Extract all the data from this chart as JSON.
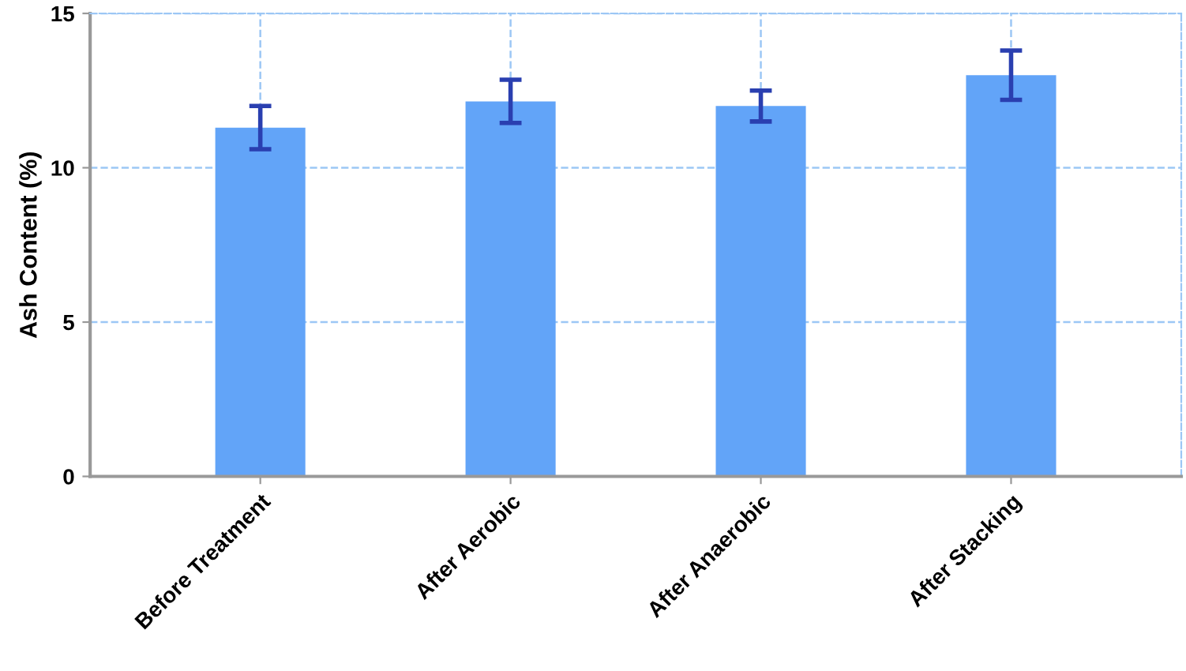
{
  "chart_data": {
    "type": "bar",
    "ylabel": "Ash Content (%)",
    "categories": [
      "Before Treatment",
      "After Aerobic",
      "After Anaerobic",
      "After Stacking"
    ],
    "values": [
      11.3,
      12.15,
      12.0,
      13.0
    ],
    "errors": [
      0.7,
      0.7,
      0.5,
      0.8
    ],
    "color": "#62a4f8",
    "ylim": [
      0,
      15
    ],
    "yticks": [
      0,
      5,
      10,
      15
    ],
    "grid": true
  }
}
